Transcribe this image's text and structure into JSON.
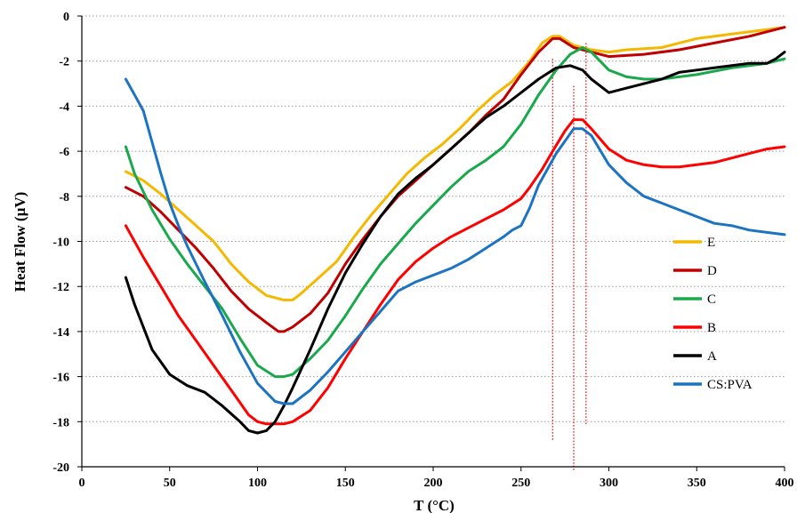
{
  "chart_data": {
    "type": "line",
    "title": "",
    "xlabel": "T (°C)",
    "ylabel": "Heat Flow (µV)",
    "xlim": [
      0,
      400
    ],
    "ylim": [
      -20,
      0
    ],
    "xticks": [
      0,
      50,
      100,
      150,
      200,
      250,
      300,
      350,
      400
    ],
    "yticks": [
      0,
      -2,
      -4,
      -6,
      -8,
      -10,
      -12,
      -14,
      -16,
      -18,
      -20
    ],
    "grid": "horizontal-dotted",
    "legend_position": "right",
    "vertical_markers": [
      {
        "x": 268,
        "y_from": -1.9,
        "y_to": -18.8
      },
      {
        "x": 280,
        "y_from": -3.1,
        "y_to": -20.2
      },
      {
        "x": 287,
        "y_from": -1.2,
        "y_to": -18.1
      }
    ],
    "series": [
      {
        "name": "E",
        "color": "#f5b800",
        "x": [
          25,
          35,
          45,
          55,
          65,
          75,
          85,
          95,
          105,
          115,
          120,
          125,
          135,
          145,
          155,
          165,
          175,
          185,
          195,
          205,
          215,
          225,
          235,
          245,
          255,
          262,
          268,
          272,
          280,
          290,
          300,
          310,
          330,
          340,
          350,
          370,
          390,
          400
        ],
        "y": [
          -6.9,
          -7.3,
          -7.9,
          -8.6,
          -9.3,
          -10.0,
          -11.0,
          -11.8,
          -12.4,
          -12.6,
          -12.6,
          -12.3,
          -11.6,
          -10.9,
          -9.8,
          -8.8,
          -7.9,
          -7.0,
          -6.3,
          -5.7,
          -5.0,
          -4.2,
          -3.5,
          -2.9,
          -2.0,
          -1.2,
          -0.9,
          -0.9,
          -1.3,
          -1.5,
          -1.6,
          -1.5,
          -1.4,
          -1.2,
          -1.0,
          -0.8,
          -0.6,
          -0.5
        ]
      },
      {
        "name": "D",
        "color": "#c00000",
        "x": [
          25,
          35,
          45,
          55,
          65,
          75,
          85,
          95,
          105,
          112,
          115,
          120,
          130,
          140,
          150,
          160,
          170,
          180,
          190,
          200,
          210,
          220,
          230,
          240,
          250,
          260,
          268,
          272,
          280,
          290,
          300,
          320,
          340,
          360,
          380,
          395,
          400
        ],
        "y": [
          -7.6,
          -8.0,
          -8.7,
          -9.5,
          -10.3,
          -11.2,
          -12.2,
          -13.0,
          -13.6,
          -14.0,
          -14.0,
          -13.8,
          -13.2,
          -12.3,
          -11.0,
          -9.9,
          -8.9,
          -8.0,
          -7.3,
          -6.6,
          -5.9,
          -5.2,
          -4.4,
          -3.7,
          -2.6,
          -1.6,
          -1.0,
          -1.0,
          -1.4,
          -1.6,
          -1.8,
          -1.7,
          -1.5,
          -1.2,
          -0.9,
          -0.6,
          -0.5
        ]
      },
      {
        "name": "C",
        "color": "#1aa84c",
        "x": [
          25,
          30,
          40,
          50,
          60,
          70,
          80,
          90,
          100,
          110,
          115,
          120,
          130,
          140,
          150,
          160,
          170,
          180,
          190,
          200,
          210,
          220,
          230,
          240,
          250,
          260,
          270,
          278,
          285,
          290,
          300,
          310,
          320,
          330,
          350,
          370,
          390,
          400
        ],
        "y": [
          -5.8,
          -7.0,
          -8.6,
          -9.9,
          -11.0,
          -12.0,
          -13.0,
          -14.3,
          -15.5,
          -16.0,
          -16.0,
          -15.9,
          -15.2,
          -14.4,
          -13.3,
          -12.1,
          -11.0,
          -10.1,
          -9.2,
          -8.4,
          -7.6,
          -6.9,
          -6.4,
          -5.8,
          -4.8,
          -3.5,
          -2.4,
          -1.7,
          -1.4,
          -1.6,
          -2.4,
          -2.7,
          -2.8,
          -2.8,
          -2.6,
          -2.3,
          -2.1,
          -1.9
        ]
      },
      {
        "name": "B",
        "color": "#ff0000",
        "x": [
          25,
          35,
          45,
          55,
          65,
          75,
          85,
          95,
          100,
          105,
          115,
          120,
          130,
          140,
          150,
          160,
          170,
          180,
          190,
          200,
          210,
          220,
          230,
          240,
          250,
          255,
          262,
          268,
          275,
          280,
          285,
          290,
          300,
          310,
          320,
          330,
          340,
          350,
          360,
          370,
          380,
          390,
          400
        ],
        "y": [
          -9.3,
          -10.7,
          -12.0,
          -13.3,
          -14.4,
          -15.5,
          -16.6,
          -17.7,
          -18.0,
          -18.1,
          -18.1,
          -18.0,
          -17.5,
          -16.5,
          -15.2,
          -14.0,
          -12.8,
          -11.7,
          -10.9,
          -10.3,
          -9.8,
          -9.4,
          -9.0,
          -8.6,
          -8.1,
          -7.6,
          -6.8,
          -6.0,
          -5.1,
          -4.6,
          -4.6,
          -5.0,
          -5.9,
          -6.4,
          -6.6,
          -6.7,
          -6.7,
          -6.6,
          -6.5,
          -6.3,
          -6.1,
          -5.9,
          -5.8
        ]
      },
      {
        "name": "A",
        "color": "#000000",
        "x": [
          25,
          30,
          40,
          50,
          60,
          70,
          80,
          90,
          95,
          100,
          105,
          110,
          115,
          120,
          130,
          140,
          150,
          160,
          170,
          180,
          190,
          200,
          210,
          220,
          230,
          240,
          250,
          260,
          270,
          278,
          285,
          290,
          300,
          310,
          320,
          330,
          340,
          350,
          360,
          370,
          380,
          390,
          395,
          400
        ],
        "y": [
          -11.6,
          -12.8,
          -14.8,
          -15.9,
          -16.4,
          -16.7,
          -17.3,
          -18.0,
          -18.4,
          -18.5,
          -18.4,
          -18.0,
          -17.3,
          -16.5,
          -14.8,
          -13.0,
          -11.4,
          -10.1,
          -8.9,
          -7.9,
          -7.2,
          -6.6,
          -5.9,
          -5.2,
          -4.5,
          -4.0,
          -3.4,
          -2.8,
          -2.3,
          -2.2,
          -2.4,
          -2.8,
          -3.4,
          -3.2,
          -3.0,
          -2.8,
          -2.5,
          -2.4,
          -2.3,
          -2.2,
          -2.1,
          -2.1,
          -1.9,
          -1.6
        ]
      },
      {
        "name": "CS:PVA",
        "color": "#1b73c2",
        "x": [
          25,
          30,
          35,
          40,
          45,
          50,
          55,
          60,
          70,
          80,
          90,
          100,
          110,
          115,
          120,
          130,
          140,
          150,
          160,
          170,
          180,
          190,
          200,
          210,
          220,
          230,
          240,
          245,
          250,
          255,
          260,
          270,
          280,
          285,
          290,
          300,
          310,
          320,
          330,
          340,
          350,
          360,
          370,
          380,
          390,
          400
        ],
        "y": [
          -2.8,
          -3.5,
          -4.2,
          -5.6,
          -7.0,
          -8.3,
          -9.3,
          -10.2,
          -11.8,
          -13.3,
          -14.9,
          -16.3,
          -17.1,
          -17.2,
          -17.2,
          -16.6,
          -15.8,
          -14.9,
          -14.0,
          -13.1,
          -12.2,
          -11.8,
          -11.5,
          -11.2,
          -10.8,
          -10.3,
          -9.8,
          -9.5,
          -9.3,
          -8.5,
          -7.5,
          -6.1,
          -5.0,
          -5.0,
          -5.3,
          -6.6,
          -7.4,
          -8.0,
          -8.3,
          -8.6,
          -8.9,
          -9.2,
          -9.3,
          -9.5,
          -9.6,
          -9.7
        ]
      }
    ]
  }
}
